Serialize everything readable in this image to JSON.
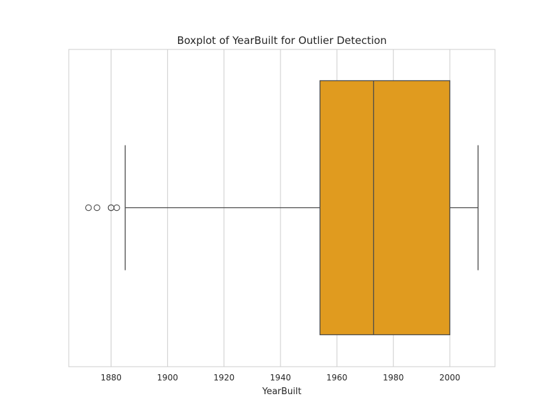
{
  "chart_data": {
    "type": "box",
    "title": "Boxplot of YearBuilt for Outlier Detection",
    "xlabel": "YearBuilt",
    "ylabel": "",
    "xlim": [
      1865,
      2016
    ],
    "xticks": [
      1880,
      1900,
      1920,
      1940,
      1960,
      1980,
      2000
    ],
    "xtick_labels": [
      "1880",
      "1900",
      "1920",
      "1940",
      "1960",
      "1980",
      "2000"
    ],
    "grid": "vertical",
    "orientation": "horizontal",
    "box_color": "#e09b1f",
    "line_color": "#4a4a4a",
    "grid_color": "#cccccc",
    "spine_color": "#cccccc",
    "series": [
      {
        "q1": 1954,
        "median": 1973,
        "q3": 2000,
        "whisker_low": 1885,
        "whisker_high": 2010,
        "outliers": [
          1872,
          1875,
          1880,
          1880,
          1882
        ]
      }
    ]
  }
}
